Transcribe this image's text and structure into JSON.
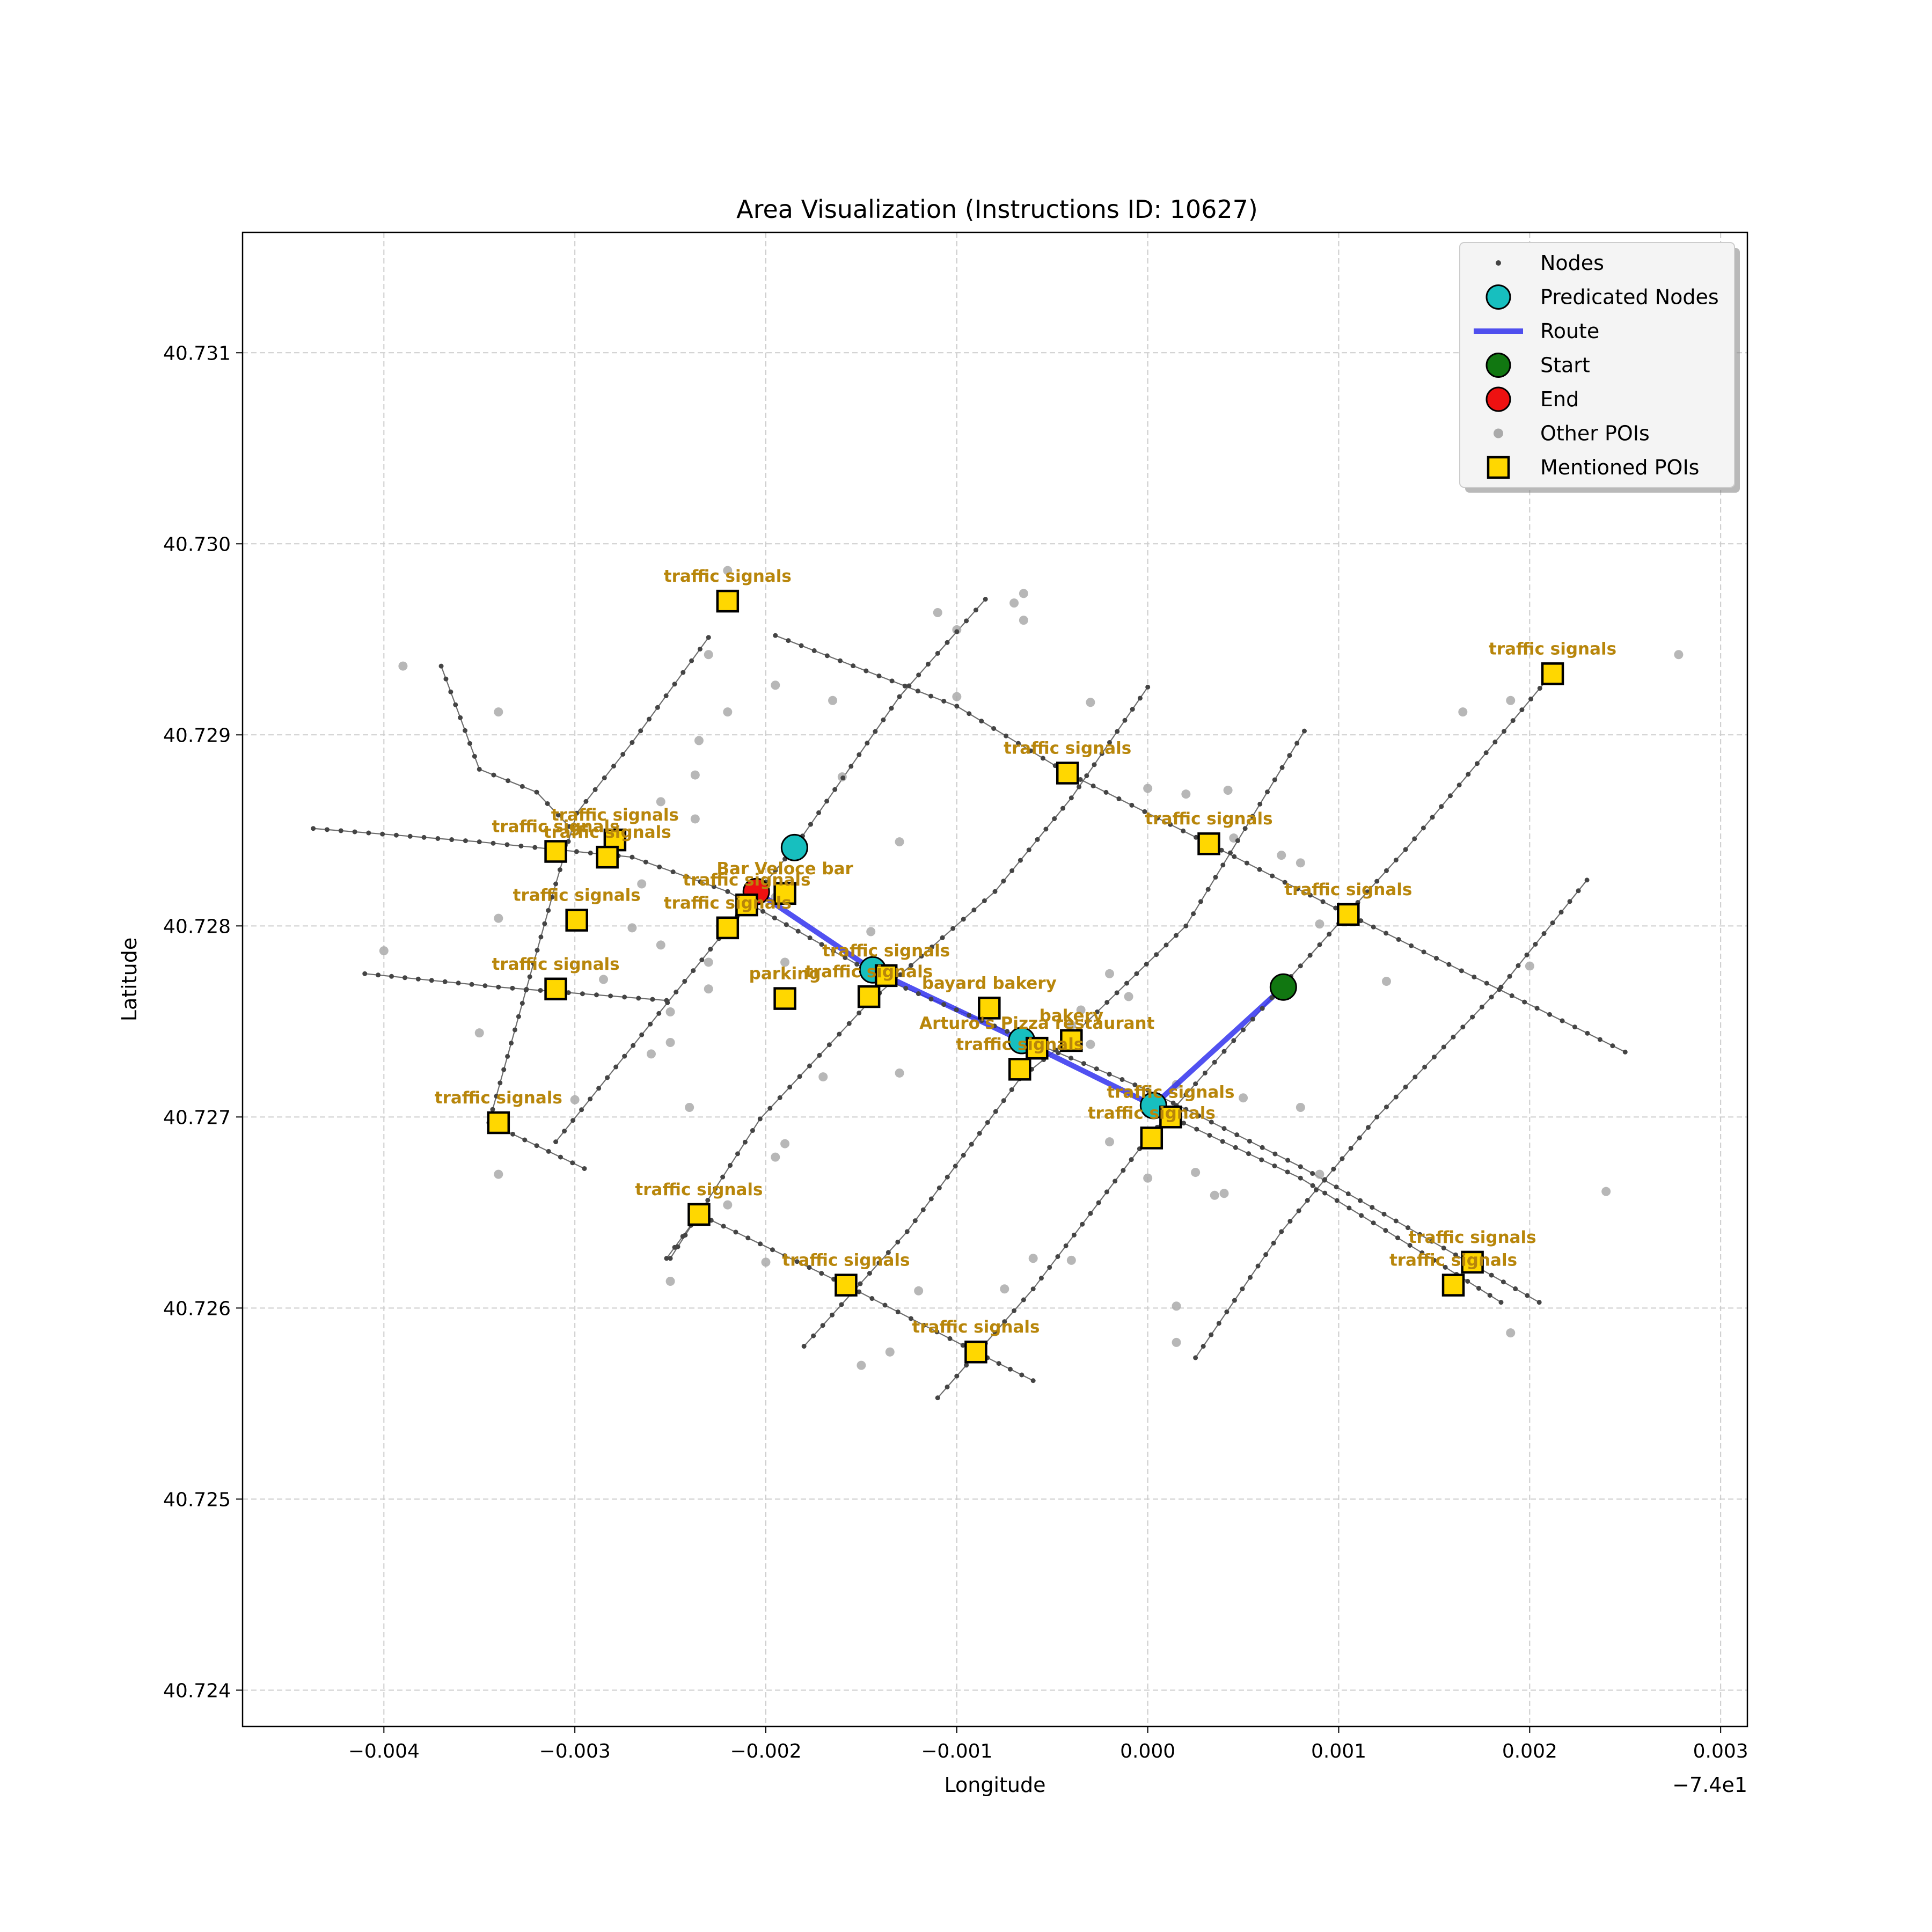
{
  "chart_data": {
    "type": "scatter",
    "title": "Area Visualization (Instructions ID: 10627)",
    "xlabel": "Longitude",
    "ylabel": "Latitude",
    "x_offset_label": "−7.4e1",
    "xlim": [
      -0.00474,
      0.00314
    ],
    "ylim": [
      40.72381,
      40.73163
    ],
    "x_ticks": [
      -0.004,
      -0.003,
      -0.002,
      -0.001,
      0.0,
      0.001,
      0.002,
      0.003
    ],
    "x_tick_labels": [
      "−0.004",
      "−0.003",
      "−0.002",
      "−0.001",
      "0.000",
      "0.001",
      "0.002",
      "0.003"
    ],
    "y_ticks": [
      40.724,
      40.725,
      40.726,
      40.727,
      40.728,
      40.729,
      40.73,
      40.731
    ],
    "y_tick_labels": [
      "40.724",
      "40.725",
      "40.726",
      "40.727",
      "40.728",
      "40.729",
      "40.730",
      "40.731"
    ],
    "grid": true,
    "legend_position": "top-right",
    "legend": [
      {
        "label": "Nodes",
        "marker": "small-dot"
      },
      {
        "label": "Predicated Nodes",
        "marker": "cyan-circle"
      },
      {
        "label": "Route",
        "marker": "blue-line"
      },
      {
        "label": "Start",
        "marker": "green-circle"
      },
      {
        "label": "End",
        "marker": "red-circle"
      },
      {
        "label": "Other POIs",
        "marker": "gray-dot"
      },
      {
        "label": "Mentioned POIs",
        "marker": "yellow-square"
      }
    ],
    "colors": {
      "node": "#444444",
      "edge": "#555555",
      "predicated": "#17bfbf",
      "route": "#3333ee",
      "start": "#117711",
      "end": "#ee1111",
      "other_poi": "#aaaaaa",
      "mentioned_poi": "#ffd700",
      "poi_label": "#b8860b",
      "grid": "#cccccc"
    },
    "streets": [
      [
        [
          -0.00437,
          40.72851
        ],
        [
          -0.0035,
          40.72844
        ],
        [
          -0.0027,
          40.72836
        ],
        [
          -0.0022,
          40.72818
        ],
        [
          -0.0014,
          40.72773
        ],
        [
          -0.00067,
          40.72742
        ],
        [
          0.0,
          40.72714
        ],
        [
          0.0008,
          40.72674
        ],
        [
          0.00205,
          40.72603
        ]
      ],
      [
        [
          -0.0041,
          40.72775
        ],
        [
          -0.0034,
          40.72768
        ],
        [
          -0.00252,
          40.72761
        ]
      ],
      [
        [
          -0.0037,
          40.72936
        ],
        [
          -0.0035,
          40.72882
        ],
        [
          -0.0032,
          40.7287
        ],
        [
          -0.00303,
          40.72852
        ]
      ],
      [
        [
          -0.00195,
          40.72952
        ],
        [
          -0.001,
          40.72915
        ],
        [
          -0.00042,
          40.7288
        ],
        [
          0.00032,
          40.72843
        ],
        [
          0.00105,
          40.72806
        ],
        [
          0.0025,
          40.72734
        ]
      ],
      [
        [
          -0.00345,
          40.72697
        ],
        [
          -0.00295,
          40.72673
        ]
      ],
      [
        [
          -0.00252,
          40.72626
        ],
        [
          -0.00235,
          40.72649
        ],
        [
          -0.00158,
          40.72612
        ],
        [
          -0.0009,
          40.72577
        ],
        [
          -0.0006,
          40.72562
        ]
      ],
      [
        [
          0.00012,
          40.727
        ],
        [
          0.0008,
          40.72668
        ],
        [
          0.0015,
          40.72625
        ],
        [
          0.00185,
          40.72603
        ]
      ],
      [
        [
          -0.00345,
          40.72697
        ],
        [
          -0.0031,
          40.72822
        ],
        [
          -0.00299,
          40.72859
        ],
        [
          -0.0027,
          40.72896
        ],
        [
          -0.0023,
          40.72951
        ]
      ],
      [
        [
          -0.0031,
          40.72687
        ],
        [
          -0.0022,
          40.72799
        ],
        [
          -0.00185,
          40.72841
        ],
        [
          -0.0013,
          40.7292
        ],
        [
          -0.00085,
          40.72971
        ]
      ],
      [
        [
          -0.0025,
          40.72626
        ],
        [
          -0.00203,
          40.72699
        ],
        [
          -0.00146,
          40.7276
        ],
        [
          -0.0008,
          40.72818
        ],
        [
          -0.0004,
          40.72867
        ],
        [
          0.0,
          40.72925
        ]
      ],
      [
        [
          -0.0018,
          40.7258
        ],
        [
          -0.00126,
          40.7264
        ],
        [
          -0.00067,
          40.7272
        ],
        [
          -0.00042,
          40.7274
        ],
        [
          0.0002,
          40.728
        ],
        [
          0.00082,
          40.72902
        ]
      ],
      [
        [
          -0.0011,
          40.72553
        ],
        [
          -0.0006,
          40.7261
        ],
        [
          0.0,
          40.72689
        ],
        [
          0.00045,
          40.7274
        ],
        [
          0.0007,
          40.72768
        ],
        [
          0.00135,
          40.7284
        ],
        [
          0.0021,
          40.7293
        ]
      ],
      [
        [
          0.00025,
          40.72574
        ],
        [
          0.0007,
          40.7264
        ],
        [
          0.0012,
          40.727
        ],
        [
          0.00185,
          40.72768
        ],
        [
          0.0023,
          40.72824
        ]
      ]
    ],
    "route": [
      [
        -0.00205,
        40.72818
      ],
      [
        -0.00144,
        40.72777
      ],
      [
        -0.00066,
        40.7274
      ],
      [
        3e-05,
        40.72706
      ],
      [
        0.00071,
        40.72768
      ]
    ],
    "start": [
      0.00071,
      40.72768
    ],
    "end": [
      -0.00205,
      40.72818
    ],
    "predicated_nodes": [
      [
        -0.00185,
        40.72841
      ],
      [
        -0.00144,
        40.72777
      ],
      [
        -0.00066,
        40.7274
      ],
      [
        3e-05,
        40.72706
      ]
    ],
    "other_pois": [
      [
        -0.0039,
        40.72936
      ],
      [
        -0.0034,
        40.72912
      ],
      [
        -0.0022,
        40.72986
      ],
      [
        -0.0023,
        40.72942
      ],
      [
        -0.00235,
        40.72897
      ],
      [
        -0.00237,
        40.72879
      ],
      [
        -0.00237,
        40.72856
      ],
      [
        -0.0022,
        40.72912
      ],
      [
        -0.00195,
        40.72926
      ],
      [
        -0.00165,
        40.72918
      ],
      [
        -0.0016,
        40.72878
      ],
      [
        -0.0011,
        40.72964
      ],
      [
        -0.001,
        40.72955
      ],
      [
        -0.0007,
        40.72969
      ],
      [
        -0.00065,
        40.72974
      ],
      [
        -0.00065,
        40.7296
      ],
      [
        -0.001,
        40.7292
      ],
      [
        -0.0003,
        40.72917
      ],
      [
        0.0,
        40.72872
      ],
      [
        0.0002,
        40.72869
      ],
      [
        0.00042,
        40.72871
      ],
      [
        0.00045,
        40.72846
      ],
      [
        0.0007,
        40.72837
      ],
      [
        0.0008,
        40.72833
      ],
      [
        0.00165,
        40.72912
      ],
      [
        0.0019,
        40.72918
      ],
      [
        0.00278,
        40.72942
      ],
      [
        0.0009,
        40.72801
      ],
      [
        0.00125,
        40.72771
      ],
      [
        0.002,
        40.72779
      ],
      [
        0.0024,
        40.72661
      ],
      [
        0.0019,
        40.72587
      ],
      [
        0.00015,
        40.72601
      ],
      [
        0.00015,
        40.72582
      ],
      [
        0.0,
        40.72668
      ],
      [
        0.0004,
        40.7266
      ],
      [
        0.0009,
        40.7267
      ],
      [
        -0.0004,
        40.72625
      ],
      [
        -0.0006,
        40.72626
      ],
      [
        -0.00075,
        40.7261
      ],
      [
        -0.00135,
        40.72577
      ],
      [
        -0.0015,
        40.7257
      ],
      [
        -0.0012,
        40.72609
      ],
      [
        -0.0017,
        40.72721
      ],
      [
        -0.0013,
        40.72723
      ],
      [
        -0.0013,
        40.72844
      ],
      [
        -0.0019,
        40.72686
      ],
      [
        -0.0019,
        40.72781
      ],
      [
        -0.00195,
        40.72815
      ],
      [
        -0.0023,
        40.72781
      ],
      [
        -0.0023,
        40.72767
      ],
      [
        -0.0025,
        40.72755
      ],
      [
        -0.0026,
        40.72733
      ],
      [
        -0.0025,
        40.72739
      ],
      [
        -0.0027,
        40.72799
      ],
      [
        -0.00285,
        40.72772
      ],
      [
        -0.00265,
        40.72822
      ],
      [
        -0.00255,
        40.72865
      ],
      [
        -0.0034,
        40.72804
      ],
      [
        -0.004,
        40.72787
      ],
      [
        -0.0035,
        40.72744
      ],
      [
        -0.0034,
        40.7267
      ],
      [
        -0.003,
        40.72709
      ],
      [
        -0.0025,
        40.72614
      ],
      [
        -0.0022,
        40.72654
      ],
      [
        -0.002,
        40.72624
      ],
      [
        -0.0024,
        40.72705
      ],
      [
        -0.00195,
        40.72679
      ],
      [
        0.00015,
        40.72717
      ],
      [
        0.0005,
        40.7271
      ],
      [
        -0.0002,
        40.72687
      ],
      [
        0.00025,
        40.72671
      ],
      [
        0.00035,
        40.72659
      ],
      [
        -0.0003,
        40.72738
      ],
      [
        -0.0004,
        40.72748
      ],
      [
        -0.00035,
        40.72756
      ],
      [
        -0.0002,
        40.72775
      ],
      [
        -0.0001,
        40.72763
      ],
      [
        0.0008,
        40.72705
      ],
      [
        -0.00145,
        40.72797
      ],
      [
        -0.00255,
        40.7279
      ]
    ],
    "mentioned_pois": [
      {
        "label": "traffic signals",
        "pos": [
          -0.0022,
          40.7297
        ]
      },
      {
        "label": "traffic signals",
        "pos": [
          0.00212,
          40.72932
        ]
      },
      {
        "label": "traffic signals",
        "pos": [
          -0.00042,
          40.7288
        ]
      },
      {
        "label": "traffic signals",
        "pos": [
          0.00032,
          40.72843
        ]
      },
      {
        "label": "traffic signals",
        "pos": [
          0.00105,
          40.72806
        ]
      },
      {
        "label": "traffic signals",
        "pos": [
          -0.0031,
          40.72839
        ]
      },
      {
        "label": "traffic signals",
        "pos": [
          -0.00279,
          40.72845
        ]
      },
      {
        "label": "traffic signals",
        "pos": [
          -0.00283,
          40.72836
        ]
      },
      {
        "label": "traffic signals",
        "pos": [
          -0.00299,
          40.72803
        ]
      },
      {
        "label": "Bar Veloce bar",
        "pos": [
          -0.0019,
          40.72817
        ]
      },
      {
        "label": "traffic signals",
        "pos": [
          -0.0021,
          40.72811
        ]
      },
      {
        "label": "traffic signals",
        "pos": [
          -0.0022,
          40.72799
        ]
      },
      {
        "label": "traffic signals",
        "pos": [
          -0.00137,
          40.72774
        ]
      },
      {
        "label": "parking",
        "pos": [
          -0.0019,
          40.72762
        ]
      },
      {
        "label": "traffic signals",
        "pos": [
          -0.00146,
          40.72763
        ]
      },
      {
        "label": "bayard bakery",
        "pos": [
          -0.00083,
          40.72757
        ]
      },
      {
        "label": "traffic signals",
        "pos": [
          -0.0031,
          40.72767
        ]
      },
      {
        "label": "bakery",
        "pos": [
          -0.0004,
          40.7274
        ]
      },
      {
        "label": "Arturo's Pizza restaurant",
        "pos": [
          -0.00058,
          40.72736
        ]
      },
      {
        "label": "traffic signals",
        "pos": [
          -0.00067,
          40.72725
        ]
      },
      {
        "label": "traffic signals",
        "pos": [
          0.00012,
          40.727
        ]
      },
      {
        "label": "traffic signals",
        "pos": [
          2e-05,
          40.72689
        ]
      },
      {
        "label": "traffic signals",
        "pos": [
          -0.0034,
          40.72697
        ]
      },
      {
        "label": "traffic signals",
        "pos": [
          -0.00235,
          40.72649
        ]
      },
      {
        "label": "traffic signals",
        "pos": [
          -0.00158,
          40.72612
        ]
      },
      {
        "label": "traffic signals",
        "pos": [
          -0.0009,
          40.72577
        ]
      },
      {
        "label": "traffic signals",
        "pos": [
          0.0017,
          40.72624
        ]
      },
      {
        "label": "traffic signals",
        "pos": [
          0.0016,
          40.72612
        ]
      }
    ]
  }
}
